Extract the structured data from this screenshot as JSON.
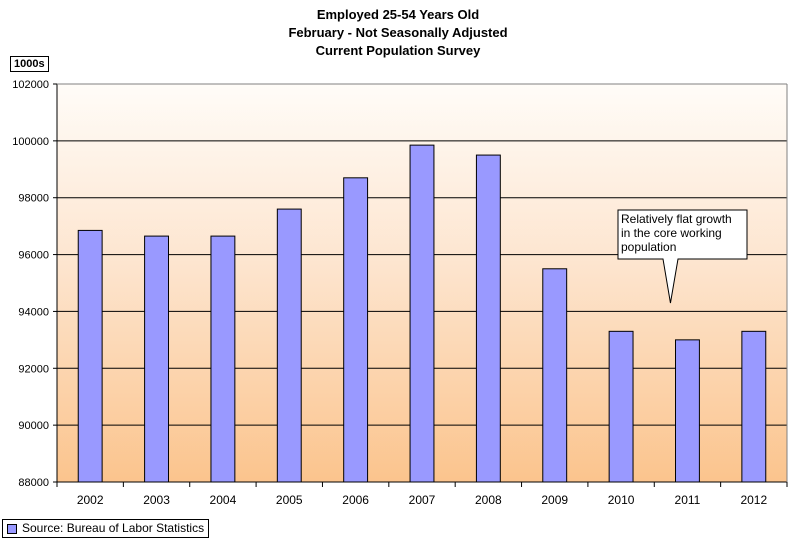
{
  "chart_data": {
    "type": "bar",
    "title_lines": [
      "Employed 25-54 Years Old",
      "February - Not Seasonally Adjusted",
      "Current Population Survey"
    ],
    "unit_label": "1000s",
    "categories": [
      "2002",
      "2003",
      "2004",
      "2005",
      "2006",
      "2007",
      "2008",
      "2009",
      "2010",
      "2011",
      "2012"
    ],
    "values": [
      96850,
      96650,
      96650,
      97600,
      98700,
      99850,
      99500,
      95500,
      93300,
      93000,
      93300
    ],
    "ylim": [
      88000,
      102000
    ],
    "yticks": [
      88000,
      90000,
      92000,
      94000,
      96000,
      98000,
      100000,
      102000
    ],
    "grid": true,
    "bar_color": "#9999ff",
    "annotation": {
      "text": "Relatively flat growth in the core working population",
      "lines": [
        "Relatively flat growth",
        "in the core working",
        "population"
      ],
      "target_category": "2011"
    },
    "legend": {
      "label": "Source: Bureau of Labor Statistics",
      "placement": "bottom-left"
    }
  }
}
